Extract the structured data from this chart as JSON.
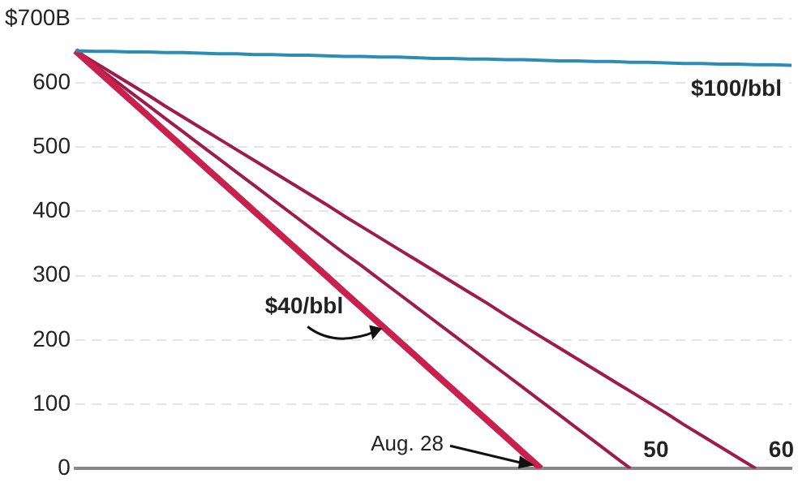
{
  "chart_data": {
    "type": "line",
    "categories": [
      null,
      null,
      null,
      null,
      null,
      null,
      null,
      null,
      null,
      null,
      null,
      null,
      null,
      null,
      null,
      null,
      null,
      null,
      null,
      null,
      null,
      null,
      null,
      null,
      null,
      null,
      null,
      null,
      null,
      null,
      null,
      null,
      null,
      null,
      null,
      null,
      null,
      null,
      null,
      null,
      null
    ],
    "series": [
      {
        "name": "$100/bbl",
        "color": "#2b8db5",
        "values": [
          650,
          649,
          649,
          648,
          648,
          647,
          647,
          646,
          645,
          645,
          644,
          644,
          643,
          643,
          642,
          641,
          641,
          640,
          640,
          639,
          638,
          638,
          637,
          637,
          636,
          636,
          635,
          634,
          634,
          633,
          633,
          632,
          632,
          631,
          630,
          630,
          629,
          629,
          628,
          628,
          627
        ]
      },
      {
        "name": "$40/bbl",
        "color": "#c8204f",
        "values": [
          650,
          625,
          600,
          575,
          550,
          525,
          500,
          475,
          450,
          425,
          400,
          375,
          350,
          325,
          300,
          275,
          250,
          225,
          200,
          175,
          150,
          125,
          100,
          75,
          50,
          25,
          0,
          null,
          null,
          null,
          null,
          null,
          null,
          null,
          null,
          null,
          null,
          null,
          null,
          null,
          null
        ]
      },
      {
        "name": "50",
        "color": "#a01c48",
        "values": [
          650,
          629,
          608,
          587,
          566,
          545,
          524,
          503,
          482,
          461,
          440,
          419,
          398,
          377,
          356,
          335,
          315,
          294,
          273,
          252,
          231,
          210,
          189,
          168,
          147,
          126,
          105,
          84,
          63,
          42,
          21,
          0,
          null,
          null,
          null,
          null,
          null,
          null,
          null,
          null,
          null
        ]
      },
      {
        "name": "60",
        "color": "#a01c48",
        "values": [
          650,
          633,
          616,
          599,
          582,
          564,
          547,
          530,
          513,
          496,
          479,
          462,
          445,
          428,
          411,
          393,
          376,
          359,
          342,
          325,
          308,
          291,
          274,
          257,
          239,
          222,
          205,
          188,
          171,
          154,
          137,
          120,
          103,
          86,
          68,
          51,
          34,
          17,
          0,
          null,
          null
        ]
      }
    ],
    "ylim": [
      0,
      700
    ],
    "yticks": [
      0,
      100,
      200,
      300,
      400,
      500,
      600,
      {
        "value": 700,
        "label": "$700B"
      }
    ],
    "grid": "y",
    "legend": false,
    "tick_labels": "y",
    "marker": "none",
    "line_style": "solid",
    "annotations": [
      "Aug. 28"
    ]
  }
}
